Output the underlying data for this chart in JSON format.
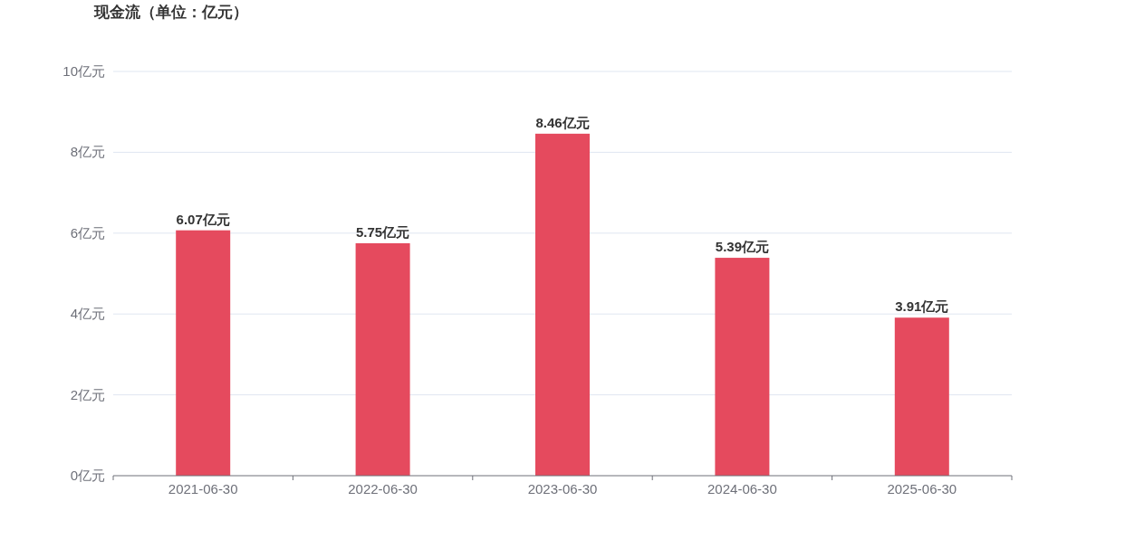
{
  "chart_data": {
    "type": "bar",
    "title": "现金流（单位：亿元）",
    "categories": [
      "2021-06-30",
      "2022-06-30",
      "2023-06-30",
      "2024-06-30",
      "2025-06-30"
    ],
    "values": [
      6.07,
      5.75,
      8.46,
      5.39,
      3.91
    ],
    "value_labels": [
      "6.07亿元",
      "5.75亿元",
      "8.46亿元",
      "5.39亿元",
      "3.91亿元"
    ],
    "color": "#e54a5e",
    "ylim": [
      0,
      10
    ],
    "yticks": [
      {
        "value": 0,
        "label": "0亿元"
      },
      {
        "value": 2,
        "label": "2亿元"
      },
      {
        "value": 4,
        "label": "4亿元"
      },
      {
        "value": 6,
        "label": "6亿元"
      },
      {
        "value": 8,
        "label": "8亿元"
      },
      {
        "value": 10,
        "label": "10亿元"
      }
    ],
    "grid": "y"
  }
}
